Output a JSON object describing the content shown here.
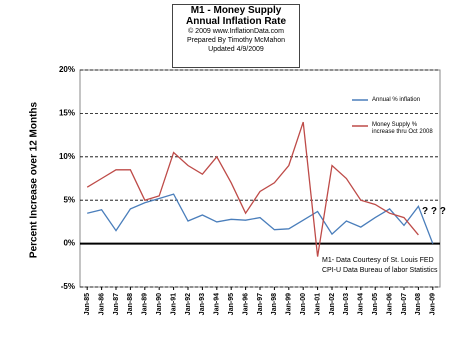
{
  "chart_data": {
    "type": "line",
    "title": "M1 - Money Supply",
    "subtitle": "Annual Inflation Rate",
    "credits": [
      "© 2009  www.InflationData.com",
      "Prepared By Timothy McMahon",
      "Updated 4/9/2009"
    ],
    "y_label": "Percent Increase over 12 Months",
    "categories": [
      "Jan-85",
      "Jan-86",
      "Jan-87",
      "Jan-88",
      "Jan-89",
      "Jan-90",
      "Jan-91",
      "Jan-92",
      "Jan-93",
      "Jan-94",
      "Jan-95",
      "Jan-96",
      "Jan-97",
      "Jan-98",
      "Jan-99",
      "Jan-00",
      "Jan-01",
      "Jan-02",
      "Jan-03",
      "Jan-04",
      "Jan-05",
      "Jan-06",
      "Jan-07",
      "Jan-08",
      "Jan-09"
    ],
    "series": [
      {
        "name": "Annual % inflation",
        "color": "#4a7ebb",
        "values": [
          3.5,
          3.9,
          1.5,
          4.0,
          4.7,
          5.2,
          5.7,
          2.6,
          3.3,
          2.5,
          2.8,
          2.7,
          3.0,
          1.6,
          1.7,
          2.7,
          3.7,
          1.1,
          2.6,
          1.9,
          3.0,
          4.0,
          2.1,
          4.3,
          0.0
        ]
      },
      {
        "name": "Money Supply % increase thru Oct 2008",
        "color": "#be4b48",
        "values": [
          6.5,
          7.5,
          8.5,
          8.5,
          5.0,
          5.5,
          10.5,
          9.0,
          8.0,
          10.0,
          7.0,
          3.5,
          6.0,
          7.0,
          9.0,
          14.0,
          -1.5,
          9.0,
          7.5,
          5.0,
          4.5,
          3.5,
          3.0,
          1.0,
          null
        ]
      }
    ],
    "ylim": [
      -5,
      20
    ],
    "yticks": [
      {
        "value": -5,
        "label": "-5%"
      },
      {
        "value": 0,
        "label": "0%"
      },
      {
        "value": 5,
        "label": "5%"
      },
      {
        "value": 10,
        "label": "10%"
      },
      {
        "value": 15,
        "label": "15%"
      },
      {
        "value": 20,
        "label": "20%"
      }
    ],
    "grid": true,
    "annotations": [
      "? ? ?",
      "M1- Data Courtesy of St. Louis FED",
      "CPI-U  Data Bureau of labor Statistics"
    ]
  }
}
